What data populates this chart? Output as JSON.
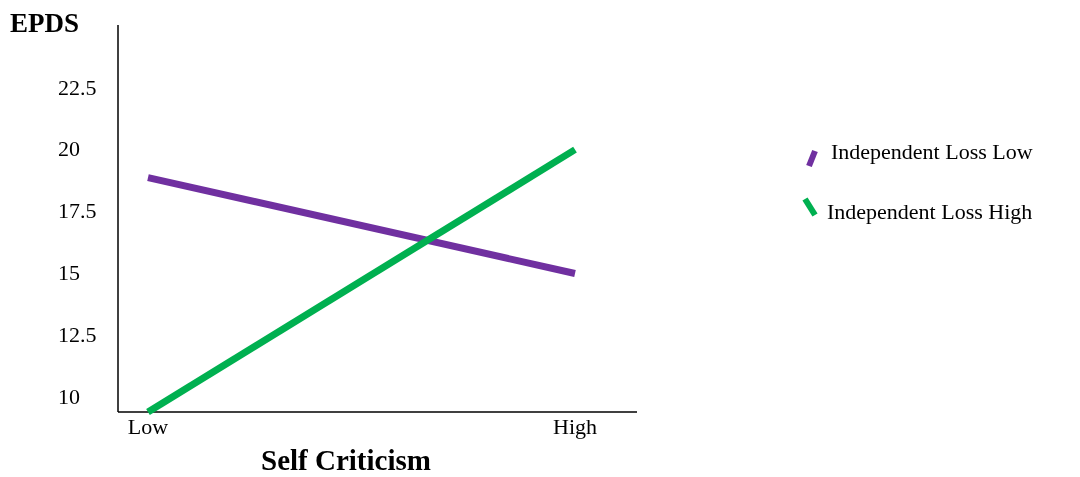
{
  "chart_data": {
    "type": "line",
    "ylabel": "EPDS",
    "xlabel": "Self Criticism",
    "categories": [
      "Low",
      "High"
    ],
    "ylim": [
      9.35,
      25
    ],
    "yticks": [
      10,
      12.5,
      15,
      17.5,
      20,
      22.5
    ],
    "series": [
      {
        "name": "Independent Loss Low",
        "color": "#7030a0",
        "values": [
          18.83,
          14.95
        ]
      },
      {
        "name": "Independent Loss High",
        "color": "#00b050",
        "values": [
          9.35,
          19.96
        ]
      }
    ],
    "legend": "right",
    "grid": false,
    "marker": "none",
    "line_style": "solid"
  }
}
